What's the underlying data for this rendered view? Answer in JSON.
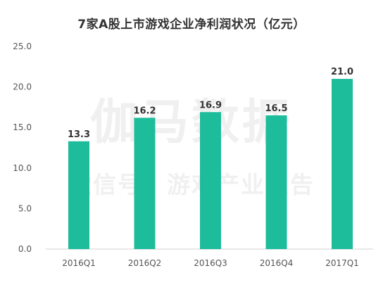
{
  "chart_data": {
    "type": "bar",
    "title": "7家A股上市游戏企业净利润状况（亿元）",
    "xlabel": "",
    "ylabel": "",
    "categories": [
      "2016Q1",
      "2016Q2",
      "2016Q3",
      "2016Q4",
      "2017Q1"
    ],
    "values": [
      13.3,
      16.2,
      16.9,
      16.5,
      21.0
    ],
    "value_labels": [
      "13.3",
      "16.2",
      "16.9",
      "16.5",
      "21.0"
    ],
    "yticks": [
      "0.0",
      "5.0",
      "10.0",
      "15.0",
      "20.0",
      "25.0"
    ],
    "ylim": [
      0,
      25
    ],
    "grid": false,
    "legend": "none",
    "bar_color": "#1dbc9b"
  },
  "watermark": {
    "main": "伽马数据",
    "sub": "微信号：游戏产业报告"
  }
}
